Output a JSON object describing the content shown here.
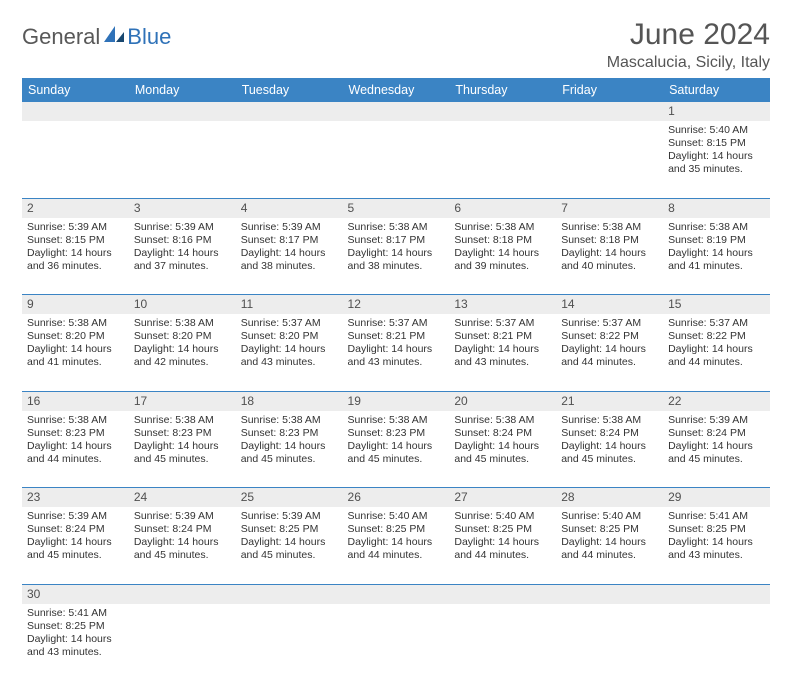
{
  "brand": {
    "part1": "General",
    "part2": "Blue"
  },
  "title": {
    "month": "June 2024",
    "location": "Mascalucia, Sicily, Italy"
  },
  "colors": {
    "header_bg": "#3b84c4",
    "header_fg": "#ffffff",
    "daynum_bg": "#ededed",
    "border": "#3b84c4",
    "text": "#333333",
    "brand_gray": "#585858",
    "brand_blue": "#2f72b8"
  },
  "weekdays": [
    "Sunday",
    "Monday",
    "Tuesday",
    "Wednesday",
    "Thursday",
    "Friday",
    "Saturday"
  ],
  "weeks": [
    {
      "nums": [
        "",
        "",
        "",
        "",
        "",
        "",
        "1"
      ],
      "cells": [
        "",
        "",
        "",
        "",
        "",
        "",
        "Sunrise: 5:40 AM\nSunset: 8:15 PM\nDaylight: 14 hours and 35 minutes."
      ]
    },
    {
      "nums": [
        "2",
        "3",
        "4",
        "5",
        "6",
        "7",
        "8"
      ],
      "cells": [
        "Sunrise: 5:39 AM\nSunset: 8:15 PM\nDaylight: 14 hours and 36 minutes.",
        "Sunrise: 5:39 AM\nSunset: 8:16 PM\nDaylight: 14 hours and 37 minutes.",
        "Sunrise: 5:39 AM\nSunset: 8:17 PM\nDaylight: 14 hours and 38 minutes.",
        "Sunrise: 5:38 AM\nSunset: 8:17 PM\nDaylight: 14 hours and 38 minutes.",
        "Sunrise: 5:38 AM\nSunset: 8:18 PM\nDaylight: 14 hours and 39 minutes.",
        "Sunrise: 5:38 AM\nSunset: 8:18 PM\nDaylight: 14 hours and 40 minutes.",
        "Sunrise: 5:38 AM\nSunset: 8:19 PM\nDaylight: 14 hours and 41 minutes."
      ]
    },
    {
      "nums": [
        "9",
        "10",
        "11",
        "12",
        "13",
        "14",
        "15"
      ],
      "cells": [
        "Sunrise: 5:38 AM\nSunset: 8:20 PM\nDaylight: 14 hours and 41 minutes.",
        "Sunrise: 5:38 AM\nSunset: 8:20 PM\nDaylight: 14 hours and 42 minutes.",
        "Sunrise: 5:37 AM\nSunset: 8:20 PM\nDaylight: 14 hours and 43 minutes.",
        "Sunrise: 5:37 AM\nSunset: 8:21 PM\nDaylight: 14 hours and 43 minutes.",
        "Sunrise: 5:37 AM\nSunset: 8:21 PM\nDaylight: 14 hours and 43 minutes.",
        "Sunrise: 5:37 AM\nSunset: 8:22 PM\nDaylight: 14 hours and 44 minutes.",
        "Sunrise: 5:37 AM\nSunset: 8:22 PM\nDaylight: 14 hours and 44 minutes."
      ]
    },
    {
      "nums": [
        "16",
        "17",
        "18",
        "19",
        "20",
        "21",
        "22"
      ],
      "cells": [
        "Sunrise: 5:38 AM\nSunset: 8:23 PM\nDaylight: 14 hours and 44 minutes.",
        "Sunrise: 5:38 AM\nSunset: 8:23 PM\nDaylight: 14 hours and 45 minutes.",
        "Sunrise: 5:38 AM\nSunset: 8:23 PM\nDaylight: 14 hours and 45 minutes.",
        "Sunrise: 5:38 AM\nSunset: 8:23 PM\nDaylight: 14 hours and 45 minutes.",
        "Sunrise: 5:38 AM\nSunset: 8:24 PM\nDaylight: 14 hours and 45 minutes.",
        "Sunrise: 5:38 AM\nSunset: 8:24 PM\nDaylight: 14 hours and 45 minutes.",
        "Sunrise: 5:39 AM\nSunset: 8:24 PM\nDaylight: 14 hours and 45 minutes."
      ]
    },
    {
      "nums": [
        "23",
        "24",
        "25",
        "26",
        "27",
        "28",
        "29"
      ],
      "cells": [
        "Sunrise: 5:39 AM\nSunset: 8:24 PM\nDaylight: 14 hours and 45 minutes.",
        "Sunrise: 5:39 AM\nSunset: 8:24 PM\nDaylight: 14 hours and 45 minutes.",
        "Sunrise: 5:39 AM\nSunset: 8:25 PM\nDaylight: 14 hours and 45 minutes.",
        "Sunrise: 5:40 AM\nSunset: 8:25 PM\nDaylight: 14 hours and 44 minutes.",
        "Sunrise: 5:40 AM\nSunset: 8:25 PM\nDaylight: 14 hours and 44 minutes.",
        "Sunrise: 5:40 AM\nSunset: 8:25 PM\nDaylight: 14 hours and 44 minutes.",
        "Sunrise: 5:41 AM\nSunset: 8:25 PM\nDaylight: 14 hours and 43 minutes."
      ]
    },
    {
      "nums": [
        "30",
        "",
        "",
        "",
        "",
        "",
        ""
      ],
      "cells": [
        "Sunrise: 5:41 AM\nSunset: 8:25 PM\nDaylight: 14 hours and 43 minutes.",
        "",
        "",
        "",
        "",
        "",
        ""
      ]
    }
  ]
}
